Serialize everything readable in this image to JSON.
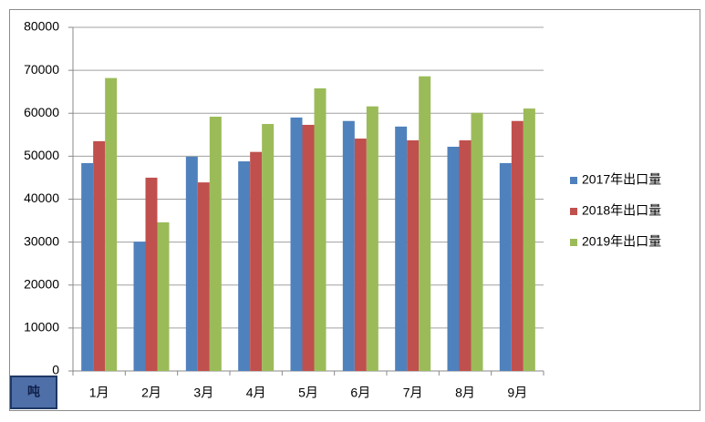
{
  "chart_data": {
    "type": "bar",
    "ylabel": "吨",
    "categories": [
      "1月",
      "2月",
      "3月",
      "4月",
      "5月",
      "6月",
      "7月",
      "8月",
      "9月"
    ],
    "series": [
      {
        "name": "2017年出口量",
        "color": "#4f81bd",
        "values": [
          48400,
          30100,
          49900,
          48800,
          59000,
          58200,
          56900,
          52200,
          48400
        ]
      },
      {
        "name": "2018年出口量",
        "color": "#c0504d",
        "values": [
          53500,
          45000,
          43900,
          51000,
          57300,
          54100,
          53700,
          53700,
          58200
        ]
      },
      {
        "name": "2019年出口量",
        "color": "#9bbb59",
        "values": [
          68200,
          34600,
          59200,
          57500,
          65800,
          61600,
          68600,
          60100,
          61100
        ]
      }
    ],
    "ylim": [
      0,
      80000
    ],
    "yticks": [
      0,
      10000,
      20000,
      30000,
      40000,
      50000,
      60000,
      70000,
      80000
    ],
    "grid": true,
    "legend": "right"
  }
}
